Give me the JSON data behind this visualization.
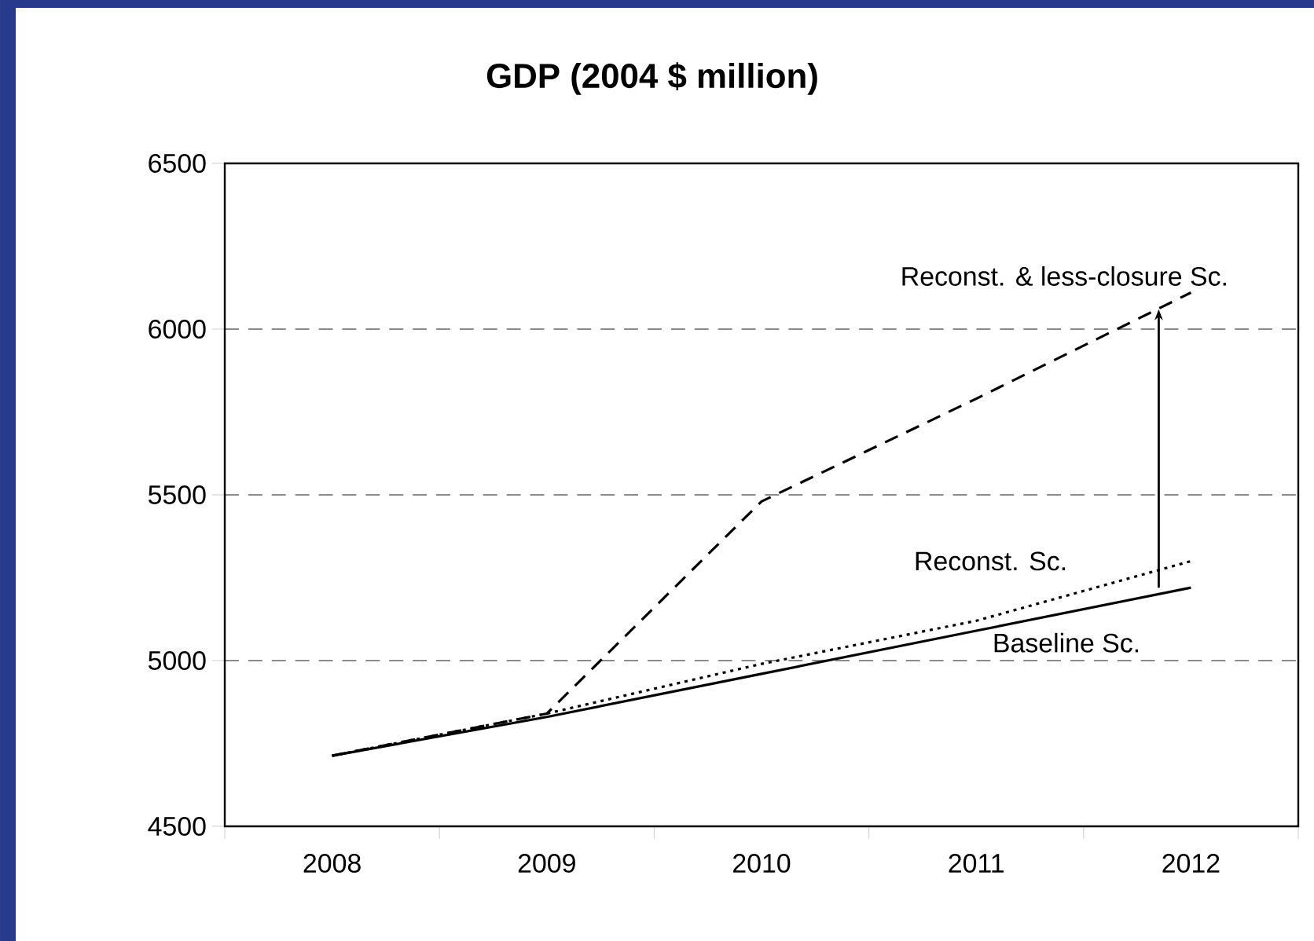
{
  "chart_data": {
    "type": "line",
    "title": "GDP (2004 $ million)",
    "categories": [
      "2008",
      "2009",
      "2010",
      "2011",
      "2012"
    ],
    "series": [
      {
        "name": "Baseline Sc.",
        "color": "#000000",
        "line_style": "solid",
        "values": [
          4713,
          4830,
          4960,
          5090,
          5220
        ]
      },
      {
        "name": "Reconst. Sc.",
        "color": "#000000",
        "line_style": "dotted",
        "values": [
          4713,
          4840,
          4990,
          5120,
          5300
        ]
      },
      {
        "name": "Reconst. & less-closure Sc.",
        "color": "#000000",
        "line_style": "dashed",
        "values": [
          4713,
          4840,
          5480,
          5790,
          6110
        ]
      }
    ],
    "ylim": [
      4500,
      6500
    ],
    "yticks": [
      4500,
      5000,
      5500,
      6000,
      6500
    ],
    "grid": "y",
    "marker": "none"
  }
}
